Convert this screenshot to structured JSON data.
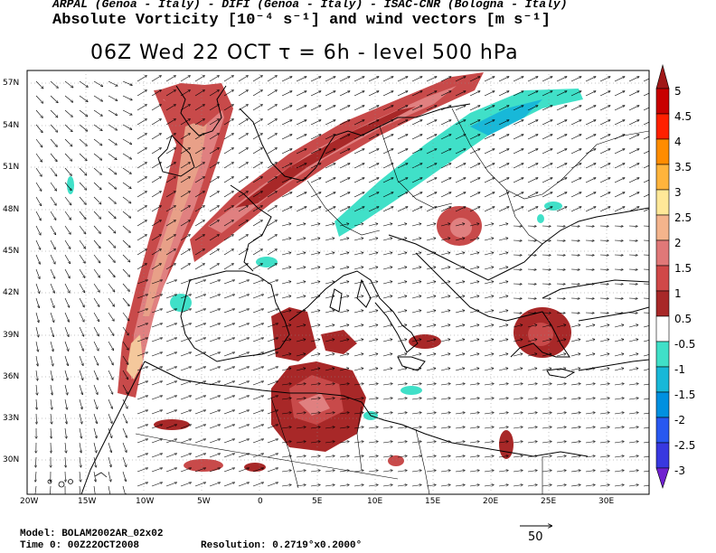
{
  "header": {
    "institutions": "ARPAL (Genoa - Italy)  -  DIFI (Genoa - Italy)  -  ISAC-CNR (Bologna - Italy)",
    "field_title": "Absolute Vorticity [10⁻⁴ s⁻¹] and wind vectors [m s⁻¹]"
  },
  "map_title": "06Z Wed 22 OCT  τ = 6h  -  level 500 hPa",
  "axes": {
    "lat_labels": [
      "57N",
      "54N",
      "51N",
      "48N",
      "45N",
      "42N",
      "39N",
      "36N",
      "33N",
      "30N"
    ],
    "lon_labels": [
      "20W",
      "15W",
      "10W",
      "5W",
      "0",
      "5E",
      "10E",
      "15E",
      "20E",
      "25E",
      "30E"
    ]
  },
  "colorbar": {
    "labels": [
      "5",
      "4.5",
      "4",
      "3.5",
      "3",
      "2.5",
      "2",
      "1.5",
      "1",
      "0.5",
      "-0.5",
      "-1",
      "-1.5",
      "-2",
      "-2.5",
      "-3"
    ],
    "colors": [
      "#a01818",
      "#c80000",
      "#ff2000",
      "#ff8c00",
      "#ffb43c",
      "#ffe898",
      "#f4b48c",
      "#e07878",
      "#d04848",
      "#a82828",
      "#ffffff",
      "#40e0c8",
      "#18b8d8",
      "#0090e0",
      "#2858f0",
      "#3838e0",
      "#7020d0"
    ]
  },
  "footer": {
    "model": "Model: BOLAM2002AR_02x02",
    "time": "Time 0: 00Z22OCT2008",
    "resolution": "Resolution: 0.2719°x0.2000°"
  },
  "reference_vector": {
    "label": "50"
  }
}
